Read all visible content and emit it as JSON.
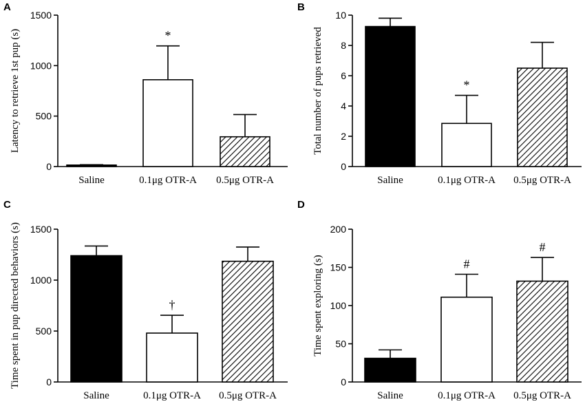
{
  "chart_data": [
    {
      "panel": "A",
      "type": "bar",
      "categories": [
        "Saline",
        "0.1μg OTR-A",
        "0.5μg OTR-A"
      ],
      "values": [
        15,
        860,
        295
      ],
      "errors": [
        3,
        335,
        220
      ],
      "annotations": [
        "",
        "*",
        ""
      ],
      "fills": [
        "solid",
        "white",
        "hatch"
      ],
      "xlabel": "",
      "ylabel": "Latency to retrieve 1st pup (s)",
      "ylim": [
        0,
        1500
      ],
      "yticks": [
        0,
        500,
        1000,
        1500
      ],
      "ytick_labels": [
        "0",
        "500",
        "1000",
        "1500"
      ]
    },
    {
      "panel": "B",
      "type": "bar",
      "categories": [
        "Saline",
        "0.1μg OTR-A",
        "0.5μg OTR-A"
      ],
      "values": [
        9.25,
        2.85,
        6.5
      ],
      "errors": [
        0.55,
        1.85,
        1.7
      ],
      "annotations": [
        "",
        "*",
        ""
      ],
      "fills": [
        "solid",
        "white",
        "hatch"
      ],
      "xlabel": "",
      "ylabel": "Total number of pups retrieved",
      "ylim": [
        0,
        10
      ],
      "yticks": [
        0,
        2,
        4,
        6,
        8,
        10
      ],
      "ytick_labels": [
        "0",
        "2",
        "4",
        "6",
        "8",
        "10"
      ]
    },
    {
      "panel": "C",
      "type": "bar",
      "categories": [
        "Saline",
        "0.1μg OTR-A",
        "0.5μg OTR-A"
      ],
      "values": [
        1240,
        480,
        1185
      ],
      "errors": [
        95,
        175,
        140
      ],
      "annotations": [
        "",
        "†",
        ""
      ],
      "fills": [
        "solid",
        "white",
        "hatch"
      ],
      "xlabel": "",
      "ylabel": "Time spent in pup directed behaviors (s)",
      "ylim": [
        0,
        1500
      ],
      "yticks": [
        0,
        500,
        1000,
        1500
      ],
      "ytick_labels": [
        "0",
        "500",
        "1000",
        "1500"
      ]
    },
    {
      "panel": "D",
      "type": "bar",
      "categories": [
        "Saline",
        "0.1μg OTR-A",
        "0.5μg OTR-A"
      ],
      "values": [
        31,
        111,
        132
      ],
      "errors": [
        11,
        30,
        31
      ],
      "annotations": [
        "",
        "#",
        "#"
      ],
      "fills": [
        "solid",
        "white",
        "hatch"
      ],
      "xlabel": "",
      "ylabel": "Time spent exploring (s)",
      "ylim": [
        0,
        200
      ],
      "yticks": [
        0,
        50,
        100,
        150,
        200
      ],
      "ytick_labels": [
        "0",
        "50",
        "100",
        "150",
        "200"
      ]
    }
  ]
}
